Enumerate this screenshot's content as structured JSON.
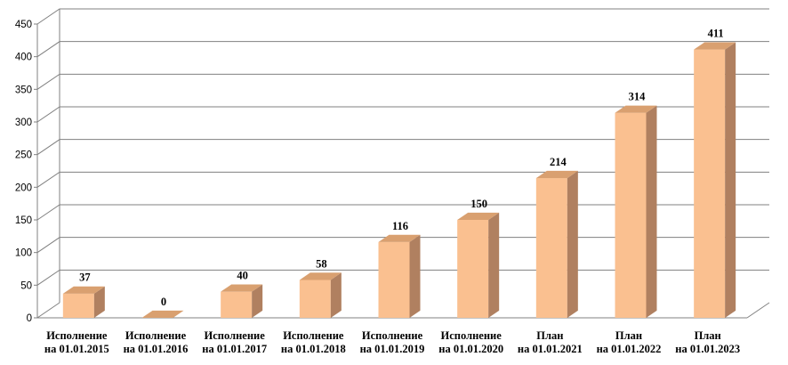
{
  "chart_data": {
    "type": "bar",
    "title": "",
    "xlabel": "",
    "ylabel": "",
    "ylim": [
      0,
      450
    ],
    "ytick_step": 50,
    "grid": true,
    "legend": "none",
    "categories": [
      [
        "Исполнение",
        "на 01.01.2015"
      ],
      [
        "Исполнение",
        "на 01.01.2016"
      ],
      [
        "Исполнение",
        "на 01.01.2017"
      ],
      [
        "Исполнение",
        "на 01.01.2018"
      ],
      [
        "Исполнение",
        "на 01.01.2019"
      ],
      [
        "Исполнение",
        "на 01.01.2020"
      ],
      [
        "План",
        "на 01.01.2021"
      ],
      [
        "План",
        "на 01.01.2022"
      ],
      [
        "План",
        "на 01.01.2023"
      ]
    ],
    "values": [
      37,
      0,
      40,
      58,
      116,
      150,
      214,
      314,
      411
    ],
    "colors": {
      "bar_front": "#FAC090",
      "bar_top": "#D9A070",
      "bar_side": "#B08060",
      "grid": "#808080"
    }
  }
}
